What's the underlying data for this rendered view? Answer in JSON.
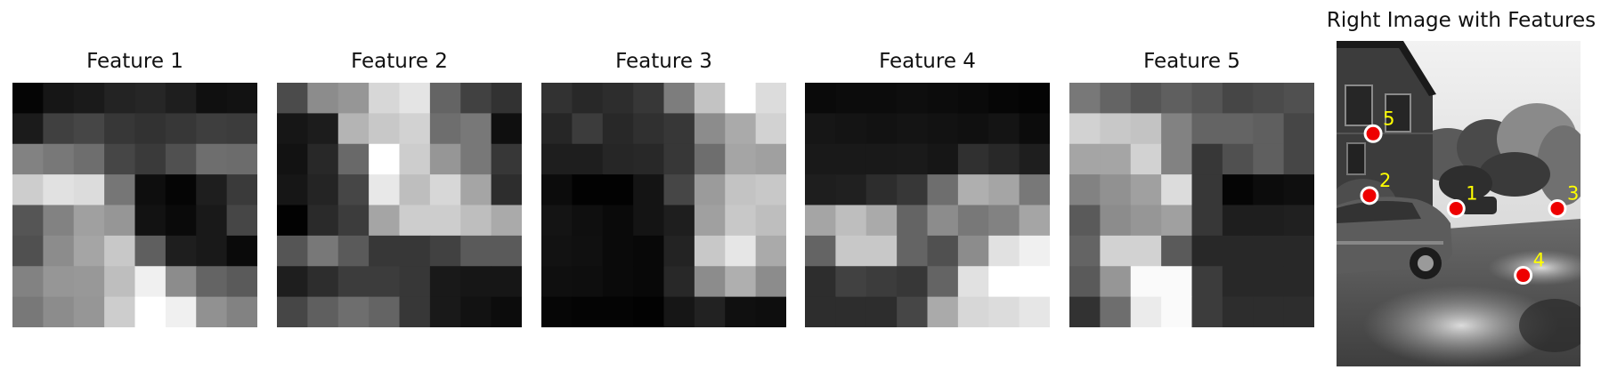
{
  "patches": [
    {
      "title": "Feature 1",
      "grid": [
        [
          5,
          22,
          26,
          35,
          38,
          30,
          16,
          18
        ],
        [
          27,
          64,
          70,
          55,
          50,
          55,
          62,
          60
        ],
        [
          130,
          120,
          110,
          70,
          58,
          80,
          110,
          108
        ],
        [
          205,
          225,
          220,
          118,
          14,
          5,
          30,
          58
        ],
        [
          85,
          130,
          160,
          150,
          18,
          10,
          25,
          70
        ],
        [
          80,
          140,
          165,
          200,
          95,
          30,
          25,
          10
        ],
        [
          130,
          150,
          152,
          190,
          240,
          140,
          100,
          90
        ],
        [
          120,
          140,
          150,
          205,
          255,
          240,
          145,
          130
        ]
      ]
    },
    {
      "title": "Feature 2",
      "grid": [
        [
          75,
          140,
          150,
          215,
          228,
          100,
          65,
          50
        ],
        [
          22,
          28,
          180,
          200,
          210,
          110,
          120,
          15
        ],
        [
          18,
          40,
          105,
          255,
          205,
          150,
          120,
          55
        ],
        [
          22,
          36,
          70,
          232,
          190,
          215,
          165,
          45
        ],
        [
          2,
          42,
          60,
          165,
          205,
          205,
          190,
          170
        ],
        [
          85,
          120,
          90,
          55,
          55,
          65,
          90,
          90
        ],
        [
          30,
          45,
          60,
          60,
          55,
          25,
          22,
          22
        ],
        [
          70,
          95,
          110,
          100,
          55,
          25,
          18,
          12
        ]
      ]
    },
    {
      "title": "Feature 3",
      "grid": [
        [
          50,
          40,
          45,
          55,
          125,
          195,
          255,
          220
        ],
        [
          38,
          60,
          40,
          48,
          55,
          140,
          170,
          210
        ],
        [
          30,
          30,
          38,
          40,
          55,
          110,
          165,
          160
        ],
        [
          12,
          2,
          2,
          20,
          70,
          155,
          195,
          200
        ],
        [
          20,
          15,
          10,
          20,
          30,
          160,
          200,
          190
        ],
        [
          18,
          16,
          10,
          8,
          35,
          200,
          230,
          170
        ],
        [
          15,
          14,
          10,
          8,
          40,
          140,
          175,
          140
        ],
        [
          6,
          4,
          4,
          2,
          22,
          34,
          16,
          14
        ]
      ]
    },
    {
      "title": "Feature 4",
      "grid": [
        [
          10,
          12,
          12,
          14,
          12,
          10,
          6,
          4
        ],
        [
          22,
          20,
          18,
          20,
          18,
          16,
          20,
          12
        ],
        [
          25,
          25,
          25,
          26,
          22,
          48,
          40,
          30
        ],
        [
          30,
          32,
          45,
          55,
          110,
          175,
          165,
          120
        ],
        [
          165,
          190,
          170,
          100,
          140,
          120,
          130,
          165
        ],
        [
          100,
          200,
          200,
          100,
          80,
          140,
          225,
          240
        ],
        [
          45,
          65,
          60,
          55,
          100,
          225,
          255,
          255
        ],
        [
          45,
          45,
          45,
          70,
          170,
          215,
          220,
          230
        ]
      ]
    },
    {
      "title": "Feature 5",
      "grid": [
        [
          120,
          100,
          85,
          95,
          85,
          70,
          75,
          80
        ],
        [
          210,
          200,
          195,
          130,
          100,
          100,
          95,
          70
        ],
        [
          165,
          165,
          210,
          130,
          55,
          80,
          95,
          70
        ],
        [
          130,
          145,
          160,
          220,
          55,
          5,
          12,
          15
        ],
        [
          90,
          140,
          150,
          160,
          55,
          30,
          30,
          32
        ],
        [
          100,
          210,
          210,
          90,
          40,
          40,
          40,
          40
        ],
        [
          90,
          150,
          250,
          250,
          60,
          40,
          40,
          40
        ],
        [
          50,
          110,
          235,
          250,
          60,
          45,
          45,
          45
        ]
      ]
    }
  ],
  "photo": {
    "title": "Right Image with Features",
    "markers": [
      {
        "label": "1",
        "x": 0.49,
        "y": 0.515
      },
      {
        "label": "2",
        "x": 0.135,
        "y": 0.475
      },
      {
        "label": "3",
        "x": 0.905,
        "y": 0.515
      },
      {
        "label": "4",
        "x": 0.765,
        "y": 0.72
      },
      {
        "label": "5",
        "x": 0.15,
        "y": 0.285
      }
    ],
    "marker_fill": "#ee0000",
    "marker_stroke": "#ffffff",
    "label_color": "#ffff00"
  }
}
